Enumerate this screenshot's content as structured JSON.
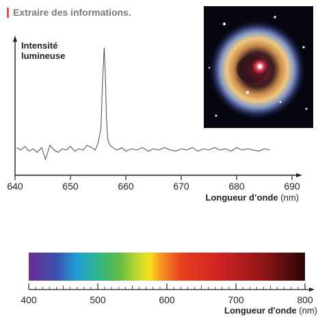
{
  "header": {
    "title": "Extraire des informations."
  },
  "colors": {
    "accent": "#e4572e",
    "header_text": "#7a7a7a",
    "axis": "#231f20",
    "spectrum_line": "#4a4a4a"
  },
  "photo": {
    "icon": "star-nebula-photo"
  },
  "chart_data": [
    {
      "type": "line",
      "xlabel": "Longueur d’onde",
      "xunit": "(nm)",
      "ylabel_line1": "Intensité",
      "ylabel_line2": "lumineuse",
      "xlim": [
        640,
        690
      ],
      "ylim": [
        0,
        1
      ],
      "xticks": [
        640,
        650,
        660,
        670,
        680,
        690
      ],
      "series": [
        {
          "x": [
            640.3,
            641.0,
            641.8,
            642.5,
            643.3,
            644.0,
            644.8,
            645.5,
            646.3,
            647.0,
            647.8,
            648.5,
            649.3,
            650.0,
            650.8,
            651.5,
            652.3,
            653.0,
            653.8,
            654.5,
            655.0,
            655.5,
            655.8,
            656.1,
            656.3,
            656.5,
            656.7,
            657.0,
            657.4,
            658.0,
            658.5,
            659.3,
            660.0,
            661.0,
            662.0,
            663.0,
            664.0,
            665.0,
            666.0,
            667.0,
            668.0,
            669.0,
            670.0,
            671.0,
            672.0,
            673.0,
            674.0,
            675.0,
            676.0,
            677.0,
            678.0,
            679.0,
            680.0,
            681.0,
            682.0,
            683.0,
            684.0,
            685.0,
            686.0
          ],
          "y": [
            0.14,
            0.12,
            0.15,
            0.11,
            0.13,
            0.1,
            0.14,
            0.04,
            0.16,
            0.12,
            0.1,
            0.13,
            0.12,
            0.15,
            0.11,
            0.13,
            0.12,
            0.16,
            0.14,
            0.12,
            0.18,
            0.3,
            0.7,
            0.98,
            0.75,
            0.4,
            0.22,
            0.17,
            0.15,
            0.13,
            0.12,
            0.14,
            0.11,
            0.13,
            0.12,
            0.14,
            0.11,
            0.13,
            0.12,
            0.14,
            0.12,
            0.11,
            0.13,
            0.12,
            0.14,
            0.11,
            0.13,
            0.12,
            0.14,
            0.12,
            0.13,
            0.11,
            0.14,
            0.12,
            0.13,
            0.12,
            0.11,
            0.13,
            0.12
          ]
        }
      ]
    },
    {
      "type": "color-scale",
      "xlabel": "Longueur d'onde",
      "xunit": "(nm)",
      "xlim": [
        400,
        800
      ],
      "xticks": [
        400,
        500,
        600,
        700,
        800
      ],
      "gradient": [
        {
          "nm": 400,
          "color": "#6a2d91"
        },
        {
          "nm": 440,
          "color": "#3d4fb0"
        },
        {
          "nm": 470,
          "color": "#1f9fd8"
        },
        {
          "nm": 500,
          "color": "#2fb488"
        },
        {
          "nm": 530,
          "color": "#5dbb46"
        },
        {
          "nm": 560,
          "color": "#c9d92e"
        },
        {
          "nm": 575,
          "color": "#f7e01e"
        },
        {
          "nm": 590,
          "color": "#f59a20"
        },
        {
          "nm": 620,
          "color": "#e8411f"
        },
        {
          "nm": 680,
          "color": "#cc2222"
        },
        {
          "nm": 740,
          "color": "#8f1616"
        },
        {
          "nm": 800,
          "color": "#2a0606"
        }
      ]
    }
  ]
}
